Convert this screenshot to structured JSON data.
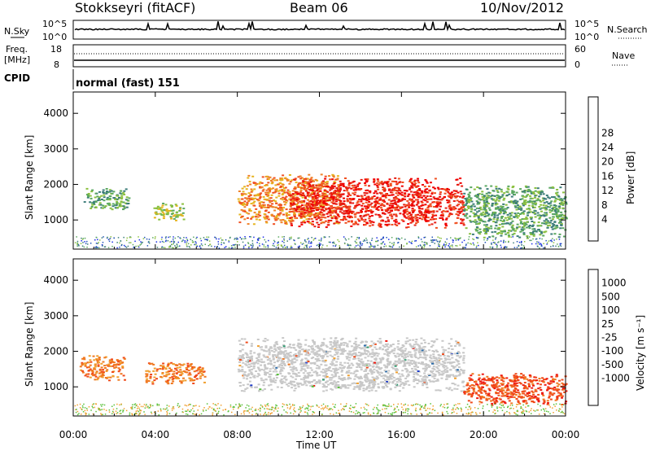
{
  "header": {
    "station": "Stokkseyri (fitACF)",
    "beam": "Beam 06",
    "date": "10/Nov/2012"
  },
  "noise_panel": {
    "left_label": "N.Sky",
    "right_label": "N.Search",
    "left_ticks": [
      "10^5",
      "10^0"
    ],
    "right_ticks": [
      "10^5",
      "10^0"
    ]
  },
  "freq_panel": {
    "left_label_1": "Freq.",
    "left_label_2": "[MHz]",
    "right_label": "Nave",
    "left_ticks": [
      "18",
      "8"
    ],
    "right_ticks": [
      "60",
      "0"
    ]
  },
  "cpid_panel": {
    "label": "CPID",
    "text": "normal (fast) 151"
  },
  "power_panel": {
    "ylabel": "Slant Range [km]",
    "yticks": [
      "1000",
      "2000",
      "3000",
      "4000"
    ],
    "colorbar": {
      "label": "Power [dB]",
      "ticks": [
        "4",
        "8",
        "12",
        "16",
        "20",
        "24",
        "28"
      ],
      "colors": [
        "#1a2ee6",
        "#2456b8",
        "#3d7d7a",
        "#5aa860",
        "#8cc040",
        "#e6b41e",
        "#f08228",
        "#f05020",
        "#e61e14",
        "#f00000"
      ]
    }
  },
  "velocity_panel": {
    "ylabel": "Slant Range [km]",
    "yticks": [
      "1000",
      "2000",
      "3000",
      "4000"
    ],
    "colorbar": {
      "label": "Velocity [m s⁻¹]",
      "ticks": [
        "1000",
        "500",
        "100",
        "25",
        "-25",
        "-100",
        "-500",
        "-1000"
      ],
      "colors": [
        "#1e3cc8",
        "#2a6aa8",
        "#2e9a70",
        "#58c03a",
        "#c8c8c8",
        "#c8c8c8",
        "#f0a030",
        "#f07820",
        "#f04a1a",
        "#ee1a12"
      ]
    }
  },
  "xaxis": {
    "label": "Time UT",
    "ticks": [
      "00:00",
      "04:00",
      "08:00",
      "12:00",
      "16:00",
      "20:00",
      "00:00"
    ]
  },
  "chart_data": [
    {
      "type": "heatmap",
      "title": "Power",
      "xlabel": "Time UT",
      "ylabel": "Slant Range [km]",
      "xlim": [
        0,
        24
      ],
      "ylim": [
        180,
        4600
      ],
      "zlabel": "Power [dB]",
      "zticks": [
        4,
        8,
        12,
        16,
        20,
        24,
        28
      ],
      "echo_regions": [
        {
          "t0": 0.5,
          "t1": 2.7,
          "r0": 1300,
          "r1": 1900,
          "level": 12
        },
        {
          "t0": 3.9,
          "t1": 5.4,
          "r0": 1000,
          "r1": 1500,
          "level": 14
        },
        {
          "t0": 8.0,
          "t1": 13.0,
          "r0": 900,
          "r1": 2300,
          "level": 20
        },
        {
          "t0": 10.5,
          "t1": 19.0,
          "r0": 800,
          "r1": 2200,
          "level": 28
        },
        {
          "t0": 19.0,
          "t1": 24.0,
          "r0": 500,
          "r1": 2000,
          "level": 10
        }
      ]
    },
    {
      "type": "heatmap",
      "title": "Velocity",
      "xlabel": "Time UT",
      "ylabel": "Slant Range [km]",
      "xlim": [
        0,
        24
      ],
      "ylim": [
        180,
        4600
      ],
      "zlabel": "Velocity [m s⁻¹]",
      "zticks": [
        1000,
        500,
        100,
        25,
        -25,
        -100,
        -500,
        -1000
      ],
      "echo_regions": [
        {
          "t0": 0.3,
          "t1": 2.5,
          "r0": 1200,
          "r1": 1900,
          "level": -400
        },
        {
          "t0": 3.5,
          "t1": 6.4,
          "r0": 1100,
          "r1": 1700,
          "level": -300
        },
        {
          "t0": 8.0,
          "t1": 19.0,
          "r0": 900,
          "r1": 2400,
          "level": 0
        },
        {
          "t0": 19.0,
          "t1": 24.0,
          "r0": 500,
          "r1": 1400,
          "level": -600
        }
      ]
    }
  ]
}
